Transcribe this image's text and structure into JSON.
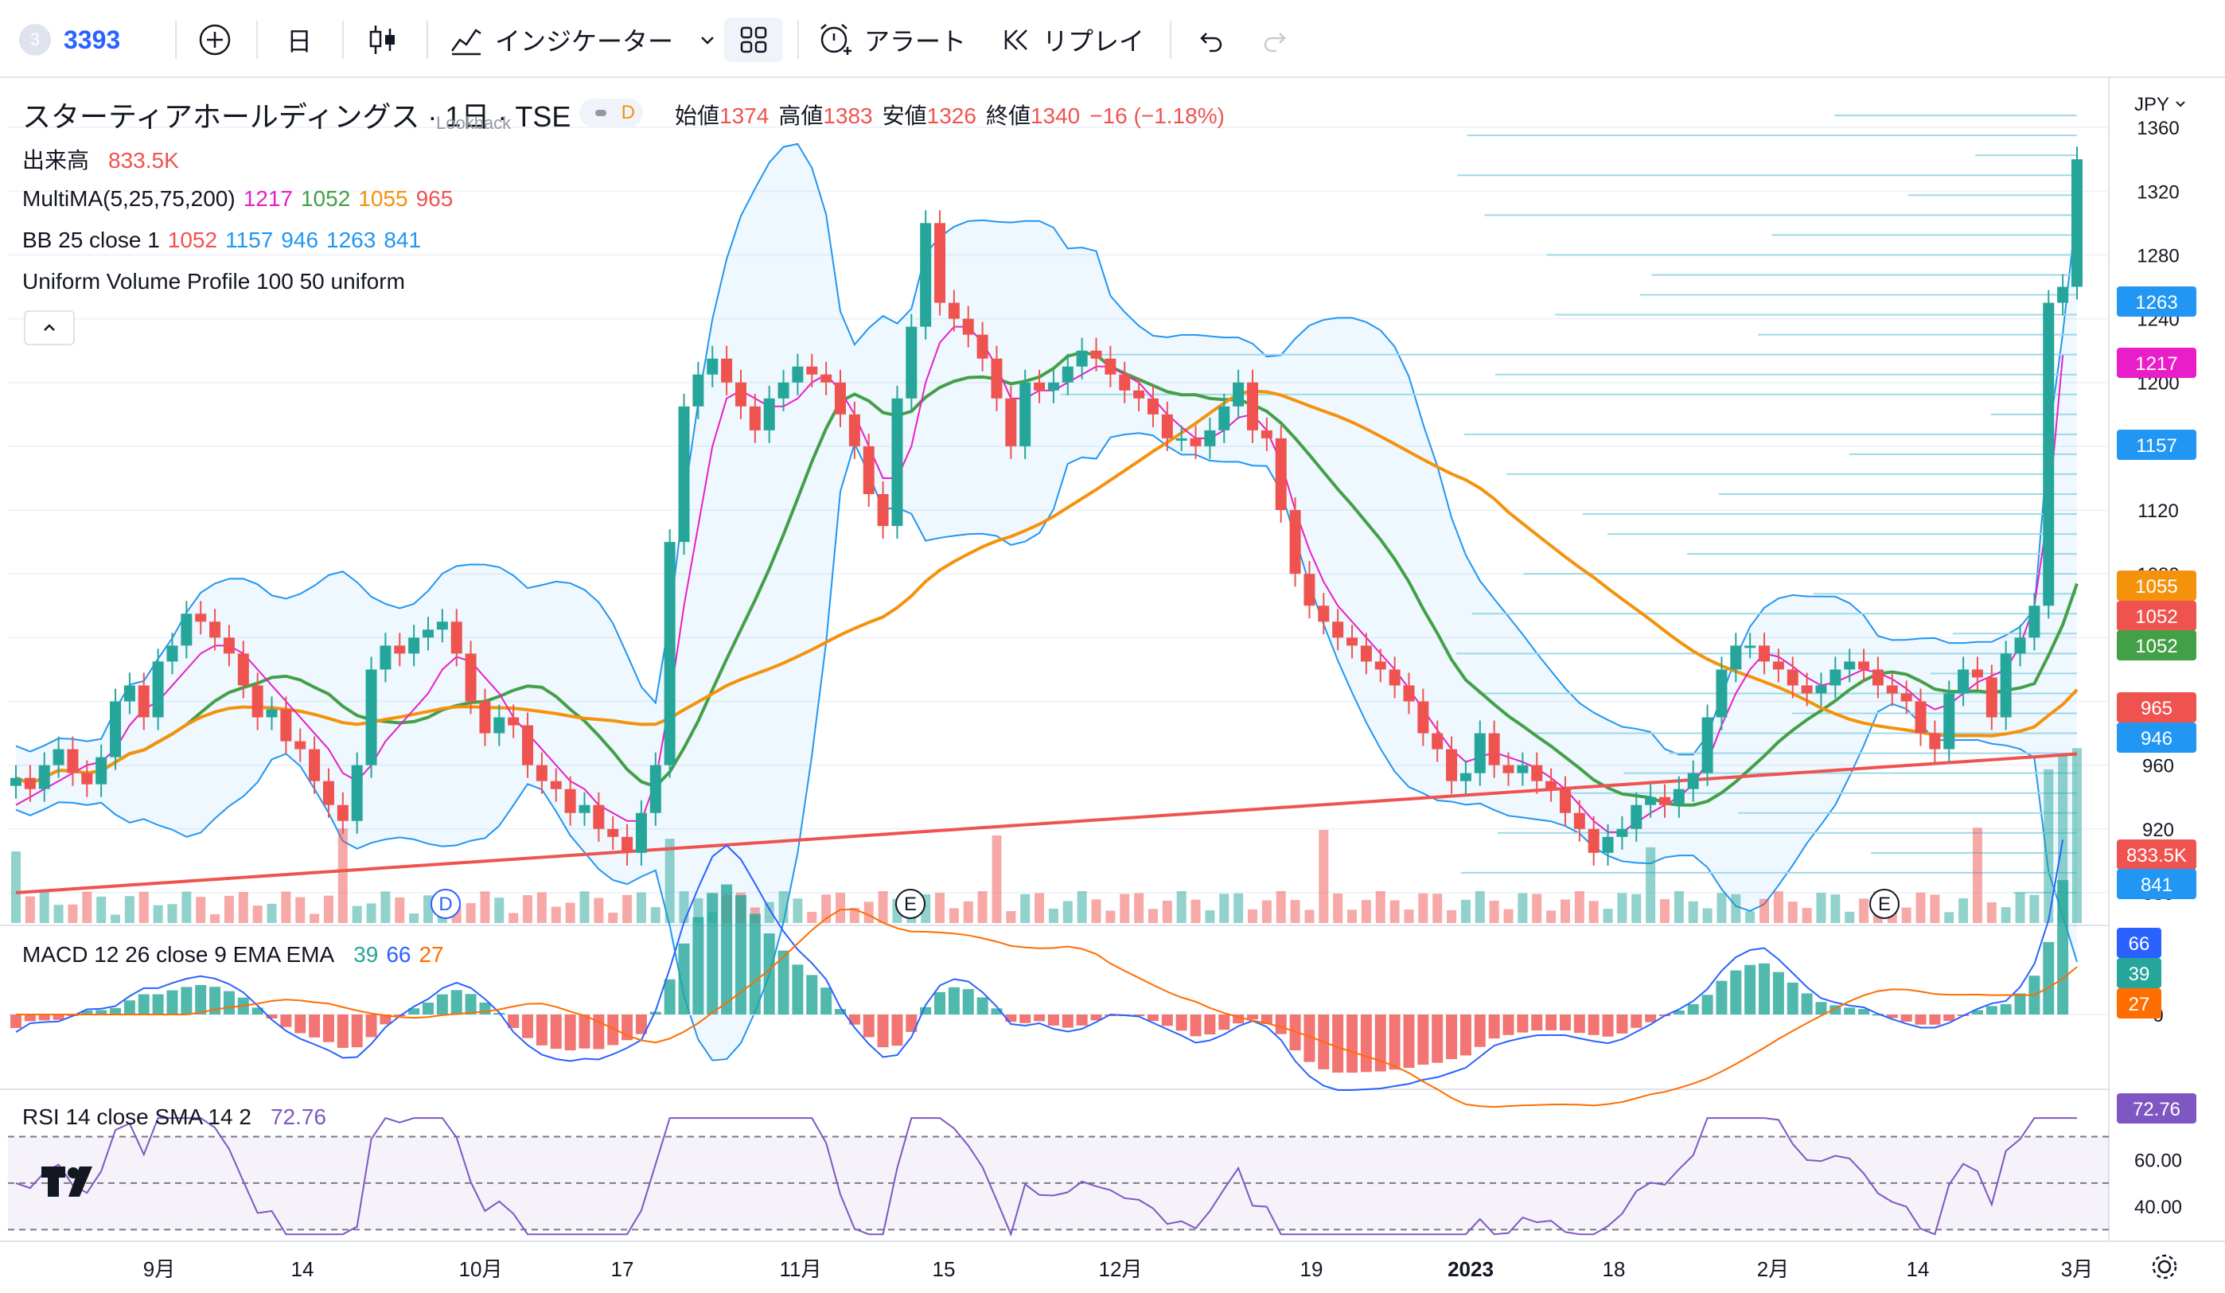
{
  "toolbar": {
    "symbol_badge": "3",
    "symbol": "3393",
    "add_symbol_icon": "plus-circle-icon",
    "interval": "日",
    "chart_type_icon": "candles-icon",
    "indicators_label": "インジケーター",
    "layout_icon": "grid-icon",
    "alert_label": "アラート",
    "replay_label": "リプレイ",
    "undo_icon": "undo-icon",
    "redo_icon": "redo-icon"
  },
  "header": {
    "title": "スターティアホールディングス · 1日 · TSE",
    "lookback": "Lookback",
    "status_badge": "D",
    "open_label": "始値",
    "open": "1374",
    "high_label": "高値",
    "high": "1383",
    "low_label": "安値",
    "low": "1326",
    "close_label": "終値",
    "close": "1340",
    "change": "−16 (−1.18%)",
    "currency": "JPY"
  },
  "legends": {
    "volume_label": "出来高",
    "volume_value": "833.5K",
    "ma_label": "MultiMA(5,25,75,200)",
    "ma_values": [
      "1217",
      "1052",
      "1055",
      "965"
    ],
    "bb_label": "BB 25 close 1",
    "bb_values": [
      "1052",
      "1157",
      "946",
      "1263",
      "841"
    ],
    "vp_label": "Uniform Volume Profile 100 50 uniform",
    "macd_label": "MACD 12 26 close 9 EMA EMA",
    "macd_values": [
      "39",
      "66",
      "27"
    ],
    "rsi_label": "RSI 14 close SMA 14 2",
    "rsi_value": "72.76"
  },
  "price_scale": {
    "ticks": [
      "1360",
      "1320",
      "1280",
      "1240",
      "1200",
      "1160",
      "1120",
      "1080",
      "1040",
      "1000",
      "960",
      "920",
      "880"
    ],
    "tags": [
      {
        "text": "1263",
        "color": "#2196f3"
      },
      {
        "text": "1217",
        "color": "#e91ec8"
      },
      {
        "text": "1157",
        "color": "#2196f3"
      },
      {
        "text": "1055",
        "color": "#f5920c"
      },
      {
        "text": "1052",
        "color": "#ef5350"
      },
      {
        "text": "1052",
        "color": "#43a047"
      },
      {
        "text": "965",
        "color": "#ef5350"
      },
      {
        "text": "946",
        "color": "#2196f3"
      },
      {
        "text": "833.5K",
        "color": "#ef5350"
      },
      {
        "text": "841",
        "color": "#2196f3"
      }
    ],
    "macd_ticks": [
      "0"
    ],
    "macd_tags": [
      {
        "text": "66",
        "color": "#2962ff"
      },
      {
        "text": "39",
        "color": "#26a69a"
      },
      {
        "text": "27",
        "color": "#ff6d00"
      }
    ],
    "rsi_ticks": [
      "80.00",
      "60.00",
      "40.00"
    ],
    "rsi_tag": {
      "text": "72.76",
      "color": "#7e57c2"
    }
  },
  "time_axis": [
    "9月",
    "14",
    "10月",
    "17",
    "11月",
    "15",
    "12月",
    "19",
    "2023",
    "18",
    "2月",
    "14",
    "3月"
  ],
  "markers": [
    "D",
    "E",
    "E"
  ],
  "colors": {
    "up": "#26a69a",
    "down": "#ef5350",
    "bb": "#2196f3",
    "ma5": "#e91ec8",
    "ma25": "#43a047",
    "ma75": "#f5920c",
    "ma200": "#ef5350",
    "rsi": "#7e57c2"
  },
  "chart_data": {
    "type": "candlestick",
    "title": "スターティアホールディングス · 1日 · TSE",
    "ylim": [
      860,
      1390
    ],
    "last_candle": {
      "open": 1374,
      "high": 1383,
      "low": 1326,
      "close": 1340
    },
    "close_path": [
      952,
      945,
      960,
      970,
      955,
      948,
      965,
      1000,
      1010,
      990,
      1025,
      1035,
      1055,
      1050,
      1040,
      1030,
      1010,
      990,
      995,
      975,
      970,
      950,
      935,
      925,
      960,
      1020,
      1035,
      1030,
      1040,
      1045,
      1050,
      1030,
      1000,
      980,
      990,
      985,
      960,
      950,
      945,
      930,
      935,
      920,
      915,
      905,
      930,
      960,
      1100,
      1185,
      1205,
      1215,
      1200,
      1185,
      1170,
      1190,
      1200,
      1210,
      1205,
      1200,
      1180,
      1160,
      1130,
      1110,
      1190,
      1235,
      1300,
      1250,
      1240,
      1230,
      1215,
      1190,
      1160,
      1200,
      1195,
      1200,
      1210,
      1220,
      1215,
      1205,
      1195,
      1190,
      1180,
      1165,
      1165,
      1160,
      1170,
      1185,
      1200,
      1170,
      1165,
      1120,
      1080,
      1060,
      1050,
      1040,
      1035,
      1025,
      1020,
      1010,
      1000,
      980,
      970,
      950,
      955,
      980,
      960,
      955,
      960,
      950,
      945,
      930,
      920,
      905,
      915,
      920,
      935,
      940,
      935,
      945,
      955,
      990,
      1020,
      1035,
      1035,
      1025,
      1020,
      1010,
      1005,
      1010,
      1020,
      1025,
      1020,
      1010,
      1005,
      1000,
      980,
      970,
      1005,
      1020,
      1015,
      990,
      1030,
      1040,
      1060,
      1250,
      1260,
      1340
    ],
    "ma5": [
      935,
      940,
      945,
      950,
      955,
      960,
      962,
      970,
      985,
      995,
      1000,
      1010,
      1020,
      1030,
      1035,
      1035,
      1030,
      1020,
      1010,
      1000,
      990,
      980,
      970,
      955,
      950,
      960,
      975,
      985,
      995,
      1005,
      1020,
      1028,
      1025,
      1015,
      1005,
      990,
      980,
      970,
      960,
      950,
      945,
      935,
      930,
      925,
      925,
      950,
      1000,
      1060,
      1110,
      1160,
      1190,
      1195,
      1190,
      1185,
      1185,
      1190,
      1200,
      1205,
      1195,
      1180,
      1160,
      1140,
      1140,
      1160,
      1200,
      1225,
      1235,
      1235,
      1225,
      1210,
      1190,
      1190,
      1195,
      1195,
      1200,
      1205,
      1210,
      1210,
      1205,
      1200,
      1190,
      1180,
      1172,
      1165,
      1165,
      1170,
      1178,
      1180,
      1170,
      1150,
      1120,
      1095,
      1075,
      1060,
      1050,
      1040,
      1030,
      1020,
      1008,
      995,
      982,
      970,
      962,
      965,
      968,
      965,
      962,
      958,
      952,
      945,
      935,
      925,
      918,
      918,
      924,
      930,
      935,
      940,
      948,
      962,
      985,
      1005,
      1020,
      1030,
      1028,
      1022,
      1015,
      1010,
      1012,
      1016,
      1020,
      1018,
      1014,
      1008,
      1000,
      995,
      998,
      1005,
      1012,
      1016,
      1020,
      1035,
      1060,
      1120,
      1217
    ]
  }
}
